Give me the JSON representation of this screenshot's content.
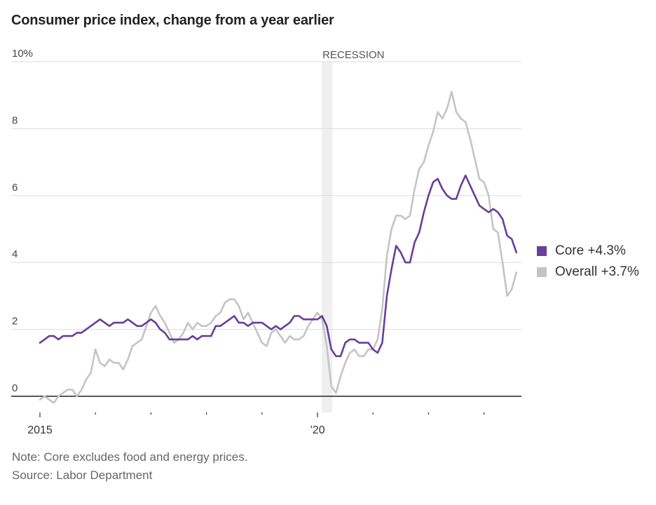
{
  "chart_data": {
    "type": "line",
    "title": "Consumer price index, change from a year earlier",
    "xlabel": "",
    "ylabel": "",
    "ylim": [
      0,
      10
    ],
    "y_ticks": [
      {
        "value": 0,
        "label": "0"
      },
      {
        "value": 2,
        "label": "2"
      },
      {
        "value": 4,
        "label": "4"
      },
      {
        "value": 6,
        "label": "6"
      },
      {
        "value": 8,
        "label": "8"
      },
      {
        "value": 10,
        "label": "10%"
      }
    ],
    "x_start": "2015-01",
    "x_end": "2023-08",
    "x_ticks": [
      {
        "year": 2015,
        "label": "2015"
      },
      {
        "year": 2016,
        "label": ""
      },
      {
        "year": 2017,
        "label": ""
      },
      {
        "year": 2018,
        "label": ""
      },
      {
        "year": 2019,
        "label": ""
      },
      {
        "year": 2020,
        "label": "’20"
      },
      {
        "year": 2021,
        "label": ""
      },
      {
        "year": 2022,
        "label": ""
      },
      {
        "year": 2023,
        "label": ""
      }
    ],
    "grid": true,
    "annotations": [
      {
        "type": "shaded-band",
        "label": "RECESSION",
        "start": "2020-02",
        "end": "2020-04"
      }
    ],
    "legend_position": "right",
    "series": [
      {
        "name": "Core",
        "legend_label": "Core +4.3%",
        "color": "#6a3d9a",
        "values": [
          1.6,
          1.7,
          1.8,
          1.8,
          1.7,
          1.8,
          1.8,
          1.8,
          1.9,
          1.9,
          2.0,
          2.1,
          2.2,
          2.3,
          2.2,
          2.1,
          2.2,
          2.2,
          2.2,
          2.3,
          2.2,
          2.1,
          2.1,
          2.2,
          2.3,
          2.2,
          2.0,
          1.9,
          1.7,
          1.7,
          1.7,
          1.7,
          1.7,
          1.8,
          1.7,
          1.8,
          1.8,
          1.8,
          2.1,
          2.1,
          2.2,
          2.3,
          2.4,
          2.2,
          2.2,
          2.1,
          2.2,
          2.2,
          2.2,
          2.1,
          2.0,
          2.1,
          2.0,
          2.1,
          2.2,
          2.4,
          2.4,
          2.3,
          2.3,
          2.3,
          2.3,
          2.4,
          2.1,
          1.4,
          1.2,
          1.2,
          1.6,
          1.7,
          1.7,
          1.6,
          1.6,
          1.6,
          1.4,
          1.3,
          1.6,
          3.0,
          3.8,
          4.5,
          4.3,
          4.0,
          4.0,
          4.6,
          4.9,
          5.5,
          6.0,
          6.4,
          6.5,
          6.2,
          6.0,
          5.9,
          5.9,
          6.3,
          6.6,
          6.3,
          6.0,
          5.7,
          5.6,
          5.5,
          5.6,
          5.5,
          5.3,
          4.8,
          4.7,
          4.3
        ]
      },
      {
        "name": "Overall",
        "legend_label": "Overall +3.7%",
        "color": "#c4c4c4",
        "values": [
          -0.1,
          0.0,
          -0.1,
          -0.2,
          0.0,
          0.1,
          0.2,
          0.2,
          0.0,
          0.2,
          0.5,
          0.7,
          1.4,
          1.0,
          0.9,
          1.1,
          1.0,
          1.0,
          0.8,
          1.1,
          1.5,
          1.6,
          1.7,
          2.1,
          2.5,
          2.7,
          2.4,
          2.2,
          1.9,
          1.6,
          1.7,
          1.9,
          2.2,
          2.0,
          2.2,
          2.1,
          2.1,
          2.2,
          2.4,
          2.5,
          2.8,
          2.9,
          2.9,
          2.7,
          2.3,
          2.5,
          2.2,
          1.9,
          1.6,
          1.5,
          1.9,
          2.0,
          1.8,
          1.6,
          1.8,
          1.7,
          1.7,
          1.8,
          2.1,
          2.3,
          2.5,
          2.3,
          1.5,
          0.3,
          0.1,
          0.6,
          1.0,
          1.3,
          1.4,
          1.2,
          1.2,
          1.4,
          1.4,
          1.7,
          2.6,
          4.2,
          5.0,
          5.4,
          5.4,
          5.3,
          5.4,
          6.2,
          6.8,
          7.0,
          7.5,
          7.9,
          8.5,
          8.3,
          8.6,
          9.1,
          8.5,
          8.3,
          8.2,
          7.7,
          7.1,
          6.5,
          6.4,
          6.0,
          5.0,
          4.9,
          4.0,
          3.0,
          3.2,
          3.7
        ]
      }
    ]
  },
  "notes": {
    "note": "Note: Core excludes food and energy prices.",
    "source": "Source: Labor Department"
  }
}
